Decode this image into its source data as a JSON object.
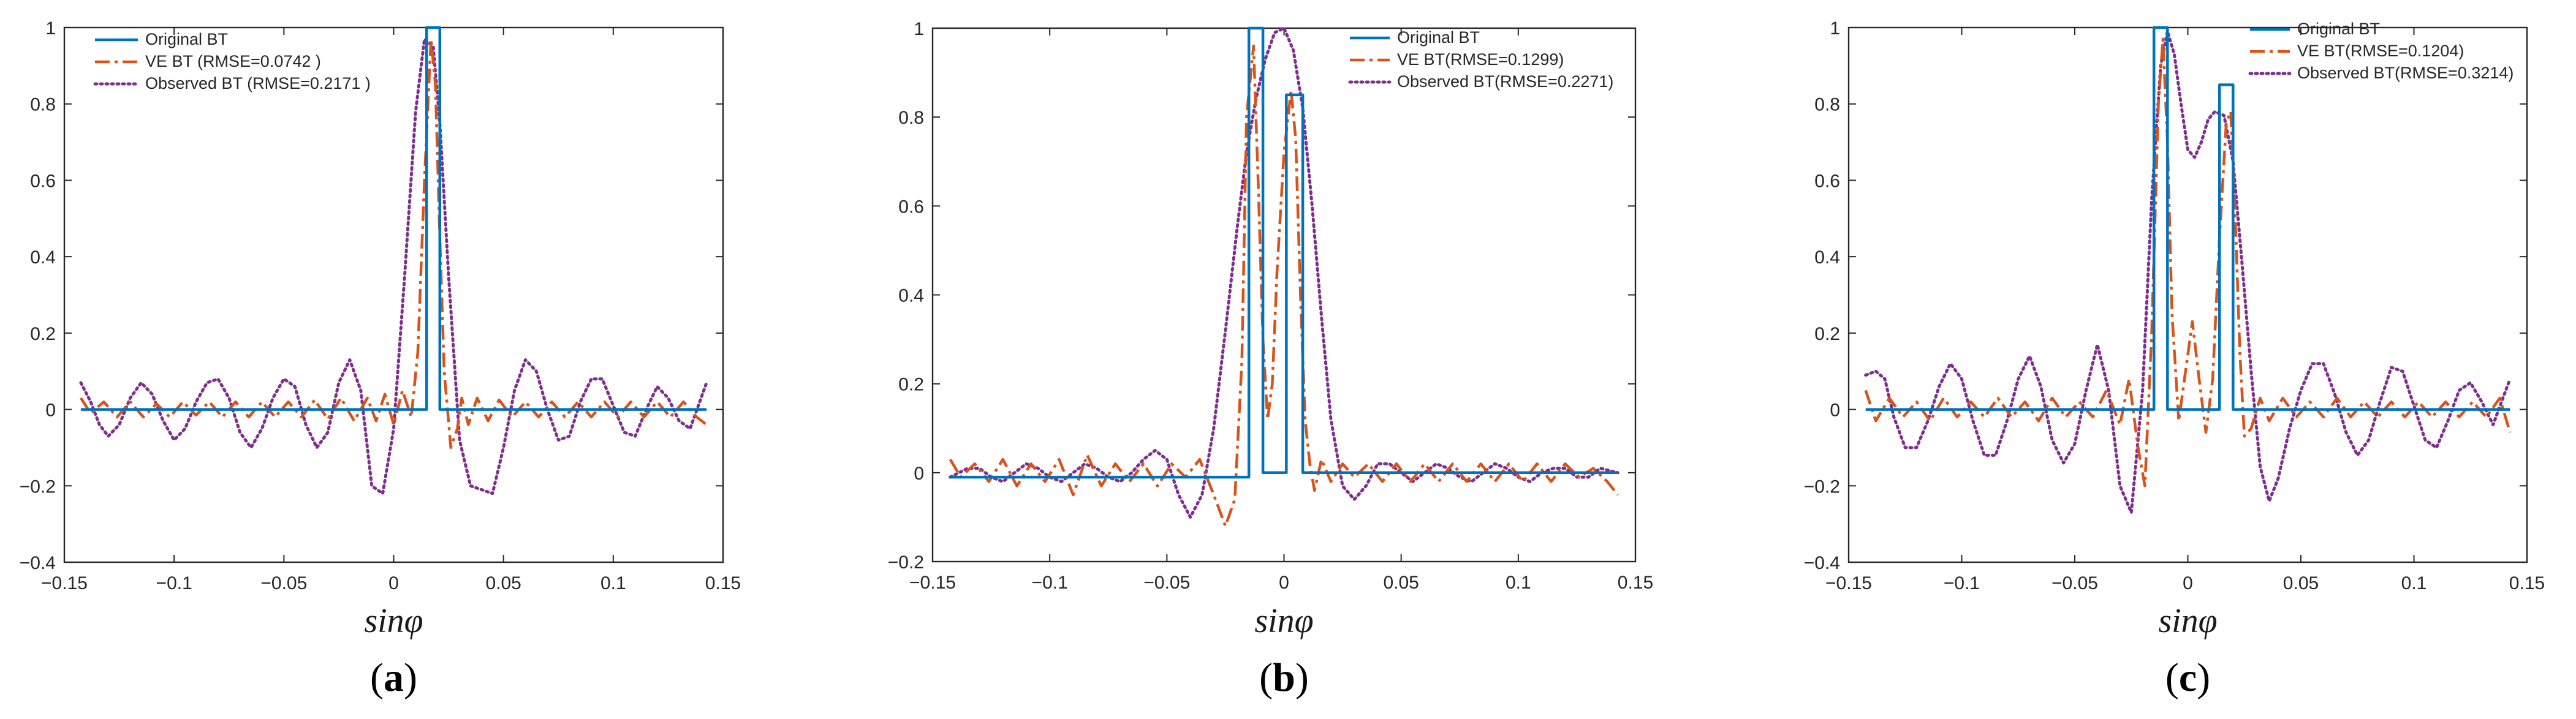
{
  "chart_data": [
    {
      "type": "line",
      "caption": "a",
      "xlabel": "sinφ",
      "xlim": [
        -0.15,
        0.15
      ],
      "ylim": [
        -0.4,
        1
      ],
      "xticks": [
        -0.15,
        -0.1,
        -0.05,
        0,
        0.05,
        0.1,
        0.15
      ],
      "yticks": [
        -0.4,
        -0.2,
        0,
        0.2,
        0.4,
        0.6,
        0.8,
        1
      ],
      "xtick_labels": [
        "−0.15",
        "−0.1",
        "−0.05",
        "0",
        "0.05",
        "0.1",
        "0.15"
      ],
      "ytick_labels": [
        "−0.4",
        "−0.2",
        "0",
        "0.2",
        "0.4",
        "0.6",
        "0.8",
        "1"
      ],
      "legend_position": "top-left",
      "series": [
        {
          "name": "Original BT",
          "color": "#0072BD",
          "style": "solid",
          "x": [
            -0.1425,
            0.015,
            0.015,
            0.021,
            0.021,
            0.1425
          ],
          "y": [
            0,
            0,
            1,
            1,
            0,
            0
          ]
        },
        {
          "name": "VE BT (RMSE=0.0742 )",
          "color": "#D95319",
          "style": "dashdot",
          "x": [
            -0.1425,
            -0.138,
            -0.132,
            -0.126,
            -0.12,
            -0.114,
            -0.108,
            -0.102,
            -0.096,
            -0.09,
            -0.084,
            -0.078,
            -0.072,
            -0.066,
            -0.06,
            -0.054,
            -0.048,
            -0.042,
            -0.036,
            -0.03,
            -0.024,
            -0.018,
            -0.012,
            -0.008,
            -0.004,
            0,
            0.004,
            0.008,
            0.011,
            0.014,
            0.017,
            0.019,
            0.021,
            0.023,
            0.026,
            0.029,
            0.031,
            0.034,
            0.038,
            0.043,
            0.048,
            0.054,
            0.06,
            0.066,
            0.072,
            0.078,
            0.084,
            0.09,
            0.096,
            0.102,
            0.108,
            0.114,
            0.12,
            0.126,
            0.132,
            0.138,
            0.1425
          ],
          "y": [
            0.03,
            -0.01,
            0.02,
            -0.02,
            0.02,
            -0.02,
            0.015,
            -0.02,
            0.02,
            -0.015,
            0.02,
            -0.02,
            0.02,
            -0.02,
            0.02,
            -0.02,
            0.02,
            -0.02,
            0.025,
            -0.025,
            0.03,
            -0.03,
            0.03,
            -0.03,
            0.04,
            -0.04,
            0.05,
            -0.02,
            0.15,
            0.6,
            0.97,
            0.85,
            0.45,
            0.1,
            -0.1,
            -0.05,
            0.03,
            -0.04,
            0.03,
            -0.03,
            0.025,
            -0.02,
            0.02,
            -0.02,
            0.02,
            -0.02,
            0.02,
            -0.02,
            0.02,
            -0.02,
            0.02,
            -0.02,
            0.02,
            -0.02,
            0.02,
            -0.02,
            -0.04
          ]
        },
        {
          "name": "Observed BT (RMSE=0.2171 )",
          "color": "#7E2F8E",
          "style": "dotted",
          "x": [
            -0.1425,
            -0.138,
            -0.134,
            -0.13,
            -0.125,
            -0.12,
            -0.115,
            -0.11,
            -0.105,
            -0.1,
            -0.095,
            -0.09,
            -0.085,
            -0.08,
            -0.075,
            -0.07,
            -0.065,
            -0.06,
            -0.055,
            -0.05,
            -0.045,
            -0.04,
            -0.035,
            -0.03,
            -0.025,
            -0.02,
            -0.015,
            -0.01,
            -0.005,
            0,
            0.005,
            0.01,
            0.014,
            0.018,
            0.021,
            0.025,
            0.03,
            0.035,
            0.04,
            0.045,
            0.05,
            0.055,
            0.06,
            0.065,
            0.07,
            0.075,
            0.08,
            0.085,
            0.09,
            0.095,
            0.1,
            0.105,
            0.11,
            0.115,
            0.12,
            0.125,
            0.13,
            0.135,
            0.1425
          ],
          "y": [
            0.07,
            0.02,
            -0.04,
            -0.07,
            -0.04,
            0.03,
            0.07,
            0.04,
            -0.03,
            -0.08,
            -0.05,
            0.02,
            0.07,
            0.08,
            0.03,
            -0.06,
            -0.1,
            -0.05,
            0.03,
            0.08,
            0.06,
            -0.04,
            -0.1,
            -0.06,
            0.07,
            0.13,
            0.05,
            -0.2,
            -0.22,
            -0.05,
            0.35,
            0.78,
            0.97,
            0.95,
            0.75,
            0.35,
            -0.08,
            -0.2,
            -0.21,
            -0.22,
            -0.1,
            0.05,
            0.13,
            0.1,
            0,
            -0.08,
            -0.07,
            0.02,
            0.08,
            0.08,
            0.01,
            -0.06,
            -0.07,
            0,
            0.06,
            0.03,
            -0.03,
            -0.05,
            0.07
          ]
        }
      ]
    },
    {
      "type": "line",
      "caption": "b",
      "xlabel": "sinφ",
      "xlim": [
        -0.15,
        0.15
      ],
      "ylim": [
        -0.2,
        1
      ],
      "xticks": [
        -0.15,
        -0.1,
        -0.05,
        0,
        0.05,
        0.1,
        0.15
      ],
      "yticks": [
        -0.2,
        0,
        0.2,
        0.4,
        0.6,
        0.8,
        1
      ],
      "xtick_labels": [
        "−0.15",
        "−0.1",
        "−0.05",
        "0",
        "0.05",
        "0.1",
        "0.15"
      ],
      "ytick_labels": [
        "−0.2",
        "0",
        "0.2",
        "0.4",
        "0.6",
        "0.8",
        "1"
      ],
      "legend_position": "top-right",
      "series": [
        {
          "name": "Original BT",
          "color": "#0072BD",
          "style": "solid",
          "x": [
            -0.1425,
            -0.015,
            -0.015,
            -0.009,
            -0.009,
            0.001,
            0.001,
            0.008,
            0.008,
            0.1425
          ],
          "y": [
            -0.01,
            -0.01,
            1,
            1,
            0,
            0,
            0.85,
            0.85,
            0,
            0
          ]
        },
        {
          "name": "VE BT(RMSE=0.1299)",
          "color": "#D95319",
          "style": "dashdot",
          "x": [
            -0.1425,
            -0.138,
            -0.132,
            -0.126,
            -0.12,
            -0.114,
            -0.108,
            -0.102,
            -0.096,
            -0.09,
            -0.084,
            -0.078,
            -0.072,
            -0.066,
            -0.06,
            -0.054,
            -0.048,
            -0.042,
            -0.036,
            -0.03,
            -0.025,
            -0.021,
            -0.018,
            -0.016,
            -0.013,
            -0.011,
            -0.009,
            -0.007,
            -0.005,
            -0.003,
            0,
            0.003,
            0.005,
            0.007,
            0.009,
            0.011,
            0.013,
            0.016,
            0.02,
            0.025,
            0.03,
            0.036,
            0.042,
            0.048,
            0.054,
            0.06,
            0.066,
            0.072,
            0.078,
            0.084,
            0.09,
            0.096,
            0.102,
            0.108,
            0.114,
            0.12,
            0.126,
            0.132,
            0.138,
            0.1425
          ],
          "y": [
            0.03,
            -0.01,
            0.02,
            -0.02,
            0.03,
            -0.03,
            0.02,
            -0.02,
            0.03,
            -0.05,
            0.04,
            -0.03,
            0.02,
            -0.02,
            0.02,
            -0.03,
            0.02,
            -0.01,
            0.03,
            -0.05,
            -0.12,
            -0.06,
            0.25,
            0.8,
            0.96,
            0.65,
            0.3,
            0.12,
            0.2,
            0.45,
            0.72,
            0.86,
            0.75,
            0.4,
            0.12,
            0.02,
            -0.04,
            0.03,
            -0.02,
            0.02,
            -0.01,
            0.02,
            -0.02,
            0.02,
            -0.02,
            0.02,
            -0.02,
            0.02,
            -0.02,
            0.02,
            -0.02,
            0.02,
            -0.02,
            0.02,
            -0.02,
            0.02,
            -0.01,
            0.01,
            -0.02,
            -0.05
          ]
        },
        {
          "name": "Observed BT(RMSE=0.2271)",
          "color": "#7E2F8E",
          "style": "dotted",
          "x": [
            -0.1425,
            -0.135,
            -0.13,
            -0.125,
            -0.12,
            -0.115,
            -0.11,
            -0.105,
            -0.1,
            -0.095,
            -0.09,
            -0.085,
            -0.08,
            -0.075,
            -0.07,
            -0.065,
            -0.06,
            -0.055,
            -0.05,
            -0.045,
            -0.04,
            -0.035,
            -0.03,
            -0.025,
            -0.02,
            -0.016,
            -0.012,
            -0.008,
            -0.004,
            0,
            0.004,
            0.008,
            0.012,
            0.016,
            0.02,
            0.025,
            0.03,
            0.035,
            0.04,
            0.045,
            0.05,
            0.055,
            0.06,
            0.065,
            0.07,
            0.075,
            0.08,
            0.085,
            0.09,
            0.095,
            0.1,
            0.105,
            0.11,
            0.115,
            0.12,
            0.125,
            0.13,
            0.135,
            0.1425
          ],
          "y": [
            -0.01,
            0.01,
            0.01,
            -0.01,
            -0.02,
            0,
            0.02,
            0.01,
            -0.01,
            -0.02,
            0,
            0.02,
            0.01,
            -0.01,
            -0.02,
            0,
            0.03,
            0.05,
            0.03,
            -0.05,
            -0.1,
            -0.05,
            0.1,
            0.32,
            0.55,
            0.72,
            0.84,
            0.93,
            0.99,
            1.0,
            0.95,
            0.82,
            0.6,
            0.35,
            0.12,
            -0.03,
            -0.06,
            -0.03,
            0.02,
            0.02,
            0,
            -0.02,
            0,
            0.02,
            0.01,
            -0.01,
            -0.02,
            0,
            0.02,
            0.01,
            -0.01,
            -0.02,
            0,
            0.01,
            0.01,
            -0.01,
            -0.01,
            0.01,
            0
          ]
        }
      ]
    },
    {
      "type": "line",
      "caption": "c",
      "xlabel": "sinφ",
      "xlim": [
        -0.15,
        0.15
      ],
      "ylim": [
        -0.4,
        1
      ],
      "xticks": [
        -0.15,
        -0.1,
        -0.05,
        0,
        0.05,
        0.1,
        0.15
      ],
      "yticks": [
        -0.4,
        -0.2,
        0,
        0.2,
        0.4,
        0.6,
        0.8,
        1
      ],
      "xtick_labels": [
        "−0.15",
        "−0.1",
        "−0.05",
        "0",
        "0.05",
        "0.1",
        "0.15"
      ],
      "ytick_labels": [
        "−0.4",
        "−0.2",
        "0",
        "0.2",
        "0.4",
        "0.6",
        "0.8",
        "1"
      ],
      "legend_position": "top-right",
      "series": [
        {
          "name": "Original BT",
          "color": "#0072BD",
          "style": "solid",
          "x": [
            -0.1425,
            -0.015,
            -0.015,
            -0.009,
            -0.009,
            0.014,
            0.014,
            0.02,
            0.02,
            0.1425
          ],
          "y": [
            0,
            0,
            1,
            1,
            0,
            0,
            0.85,
            0.85,
            0,
            0
          ]
        },
        {
          "name": "VE BT(RMSE=0.1204)",
          "color": "#D95319",
          "style": "dashdot",
          "x": [
            -0.1425,
            -0.138,
            -0.132,
            -0.126,
            -0.12,
            -0.114,
            -0.108,
            -0.102,
            -0.096,
            -0.09,
            -0.084,
            -0.078,
            -0.072,
            -0.066,
            -0.06,
            -0.054,
            -0.048,
            -0.042,
            -0.036,
            -0.03,
            -0.026,
            -0.022,
            -0.019,
            -0.016,
            -0.013,
            -0.011,
            -0.009,
            -0.007,
            -0.004,
            -0.001,
            0.002,
            0.005,
            0.008,
            0.011,
            0.014,
            0.017,
            0.019,
            0.021,
            0.023,
            0.025,
            0.028,
            0.032,
            0.036,
            0.042,
            0.048,
            0.054,
            0.06,
            0.066,
            0.072,
            0.078,
            0.084,
            0.09,
            0.096,
            0.102,
            0.108,
            0.114,
            0.12,
            0.126,
            0.132,
            0.138,
            0.1425
          ],
          "y": [
            0.05,
            -0.03,
            0.03,
            -0.02,
            0.02,
            -0.03,
            0.03,
            -0.02,
            0.02,
            -0.02,
            0.03,
            -0.02,
            0.02,
            -0.03,
            0.03,
            -0.02,
            0.02,
            -0.02,
            0.05,
            -0.04,
            0.08,
            -0.1,
            -0.2,
            0.2,
            0.8,
            0.97,
            0.7,
            0.25,
            -0.03,
            0.1,
            0.23,
            0.08,
            -0.06,
            0.08,
            0.45,
            0.75,
            0.78,
            0.5,
            0.15,
            -0.07,
            -0.05,
            0.03,
            -0.03,
            0.03,
            -0.02,
            0.02,
            -0.02,
            0.03,
            -0.02,
            0.02,
            -0.02,
            0.02,
            -0.02,
            0.02,
            -0.02,
            0.02,
            -0.02,
            0.02,
            -0.02,
            0.03,
            -0.06
          ]
        },
        {
          "name": "Observed BT(RMSE=0.3214)",
          "color": "#7E2F8E",
          "style": "dotted",
          "x": [
            -0.1425,
            -0.138,
            -0.134,
            -0.13,
            -0.125,
            -0.12,
            -0.115,
            -0.11,
            -0.105,
            -0.1,
            -0.095,
            -0.09,
            -0.085,
            -0.08,
            -0.075,
            -0.07,
            -0.065,
            -0.06,
            -0.055,
            -0.05,
            -0.045,
            -0.04,
            -0.035,
            -0.03,
            -0.025,
            -0.02,
            -0.016,
            -0.012,
            -0.009,
            -0.006,
            -0.003,
            0,
            0.003,
            0.006,
            0.009,
            0.012,
            0.016,
            0.02,
            0.024,
            0.028,
            0.032,
            0.036,
            0.04,
            0.045,
            0.05,
            0.055,
            0.06,
            0.065,
            0.07,
            0.075,
            0.08,
            0.085,
            0.09,
            0.095,
            0.1,
            0.105,
            0.11,
            0.115,
            0.12,
            0.125,
            0.13,
            0.135,
            0.1425
          ],
          "y": [
            0.09,
            0.1,
            0.08,
            -0.02,
            -0.1,
            -0.1,
            -0.03,
            0.06,
            0.12,
            0.08,
            -0.03,
            -0.12,
            -0.12,
            -0.03,
            0.08,
            0.14,
            0.06,
            -0.08,
            -0.14,
            -0.09,
            0.05,
            0.17,
            0.05,
            -0.2,
            -0.27,
            0.05,
            0.55,
            0.9,
            0.99,
            0.93,
            0.8,
            0.68,
            0.66,
            0.7,
            0.76,
            0.78,
            0.77,
            0.65,
            0.38,
            0.1,
            -0.15,
            -0.24,
            -0.18,
            -0.05,
            0.05,
            0.12,
            0.12,
            0.04,
            -0.06,
            -0.12,
            -0.08,
            0.02,
            0.11,
            0.1,
            0.01,
            -0.08,
            -0.1,
            -0.03,
            0.05,
            0.07,
            0.02,
            -0.04,
            0.08
          ]
        }
      ]
    }
  ]
}
